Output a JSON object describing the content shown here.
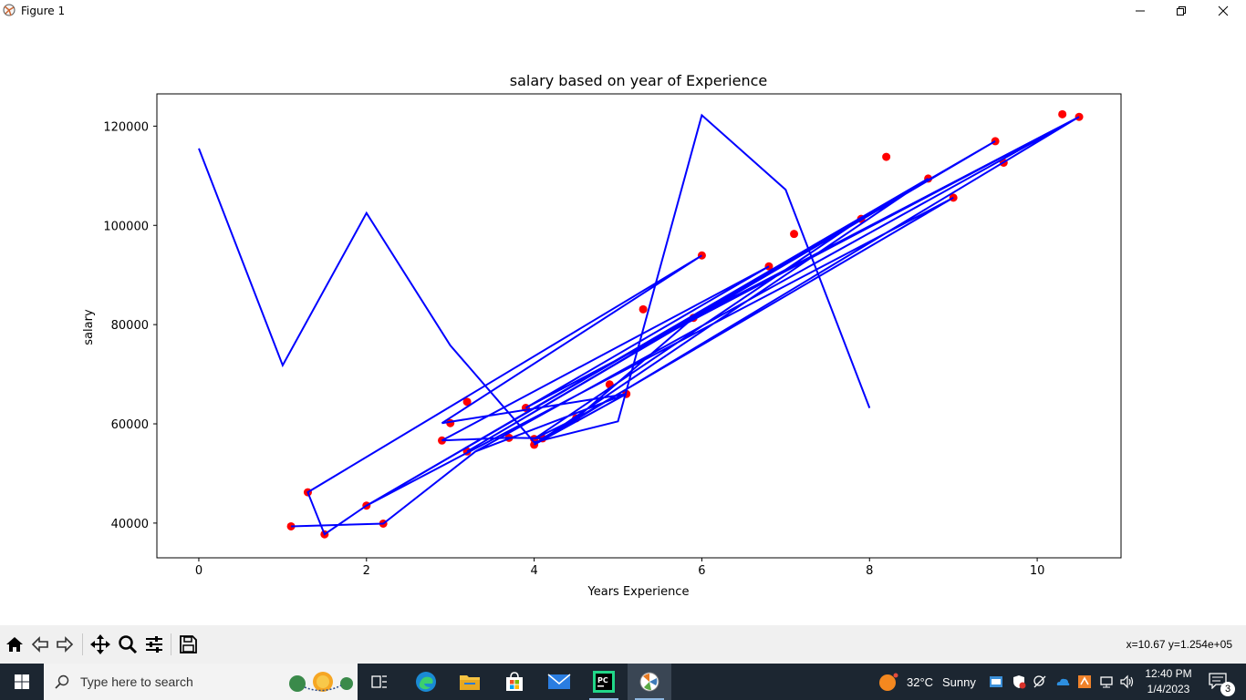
{
  "window": {
    "title": "Figure 1"
  },
  "chart_data": {
    "type": "scatter",
    "title": "salary based on year of Experience",
    "xlabel": "Years Experience",
    "ylabel": "salary",
    "xlim": [
      -0.5,
      11.0
    ],
    "ylim": [
      33000,
      126500
    ],
    "xticks": [
      0,
      2,
      4,
      6,
      8,
      10
    ],
    "yticks": [
      40000,
      60000,
      80000,
      100000,
      120000
    ],
    "grid": false,
    "legend": "none",
    "series": [
      {
        "kind": "scatter",
        "color": "#ff0000",
        "x": [
          1.1,
          1.3,
          1.5,
          2.0,
          2.2,
          2.9,
          3.0,
          3.2,
          3.2,
          3.7,
          3.9,
          4.0,
          4.0,
          4.1,
          4.5,
          4.9,
          5.1,
          5.3,
          5.9,
          6.0,
          6.8,
          7.1,
          7.9,
          8.2,
          8.7,
          9.0,
          9.5,
          9.6,
          10.3,
          10.5
        ],
        "y": [
          39343,
          46205,
          37731,
          43525,
          39891,
          56642,
          60150,
          54445,
          64445,
          57189,
          63218,
          55794,
          56957,
          57081,
          61111,
          67938,
          66029,
          83088,
          81363,
          93940,
          91738,
          98273,
          101302,
          113812,
          109431,
          105582,
          116969,
          112635,
          122391,
          121872
        ]
      },
      {
        "kind": "line",
        "color": "#0000ff",
        "x": [
          0,
          1,
          2,
          3,
          4,
          5,
          6,
          7,
          8
        ],
        "y": [
          115500,
          71800,
          102500,
          75800,
          56300,
          60500,
          122200,
          107200,
          63200
        ]
      },
      {
        "kind": "line",
        "color": "#0000ff",
        "x": [
          1.1,
          2.2,
          3.3,
          5.1,
          2.9,
          6.0,
          1.3,
          1.5,
          2.0,
          9.5,
          3.2,
          7.9,
          4.0,
          4.5,
          5.9,
          10.5,
          3.9,
          6.8,
          2.9,
          3.7,
          4.1,
          9.0,
          2.0,
          8.7,
          4.0,
          10.5,
          3.3,
          5.1,
          4.0,
          10.5,
          4.0
        ],
        "y": [
          39343,
          39891,
          54445,
          66029,
          60150,
          93940,
          46205,
          37731,
          43525,
          116969,
          54445,
          101302,
          56957,
          61111,
          81363,
          121872,
          63218,
          91738,
          56642,
          57189,
          57081,
          105582,
          43525,
          109431,
          55794,
          121872,
          54445,
          66029,
          55794,
          121872,
          55794
        ]
      }
    ]
  },
  "toolbar": {
    "buttons": [
      "home-icon",
      "back-icon",
      "forward-icon",
      "pan-icon",
      "zoom-icon",
      "configure-icon",
      "save-icon"
    ],
    "coords": "x=10.67 y=1.254e+05"
  },
  "taskbar": {
    "search_placeholder": "Type here to search",
    "weather_temp": "32°C",
    "weather_text": "Sunny",
    "time": "12:40 PM",
    "date": "1/4/2023",
    "notifications": "3"
  }
}
